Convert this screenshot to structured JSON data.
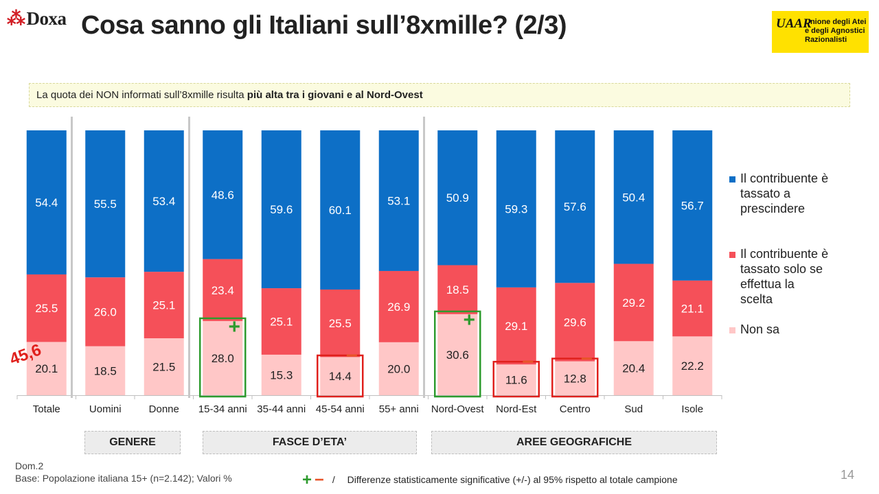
{
  "header": {
    "logo_text": "Doxa",
    "title": "Cosa sanno gli Italiani sull’8xmille? (2/3)",
    "uaar_monogram": "UAAR",
    "uaar_line1": "Unione degli Atei",
    "uaar_line2": "e degli Agnostici",
    "uaar_line3": "Razionalisti"
  },
  "subtitle": {
    "text": "La quota dei NON informati sull’8xmille risulta ",
    "bold": "più alta tra i giovani e al Nord-Ovest"
  },
  "chart_data": {
    "type": "bar",
    "stacked": true,
    "ylim": [
      0,
      100
    ],
    "categories": [
      "Totale",
      "Uomini",
      "Donne",
      "15-34 anni",
      "35-44 anni",
      "45-54 anni",
      "55+ anni",
      "Nord-Ovest",
      "Nord-Est",
      "Centro",
      "Sud",
      "Isole"
    ],
    "series": [
      {
        "name": "Non sa",
        "color": "#ffc7c7",
        "values": [
          20.1,
          18.5,
          21.5,
          28.0,
          15.3,
          14.4,
          20.0,
          30.6,
          11.6,
          12.8,
          20.4,
          22.2
        ]
      },
      {
        "name": "Il contribuente è tassato solo se effettua la scelta",
        "color": "#f55059",
        "values": [
          25.5,
          26.0,
          25.1,
          23.4,
          25.1,
          25.5,
          26.9,
          18.5,
          29.1,
          29.6,
          29.2,
          21.1
        ]
      },
      {
        "name": "Il contribuente è tassato a prescindere",
        "color": "#0d6fc6",
        "values": [
          54.4,
          55.5,
          53.4,
          48.6,
          59.6,
          60.1,
          53.1,
          50.9,
          59.3,
          57.6,
          50.4,
          56.7
        ]
      }
    ],
    "legend_position": "right",
    "legend_order": [
      "Il contribuente è tassato a prescindere",
      "Il contribuente è tassato solo se effettua la scelta",
      "Non sa"
    ],
    "groups": [
      {
        "label": "GENERE",
        "categories": [
          "Uomini",
          "Donne"
        ]
      },
      {
        "label": "FASCE D’ETA’",
        "categories": [
          "15-34 anni",
          "35-44 anni",
          "45-54 anni",
          "55+ anni"
        ]
      },
      {
        "label": "AREE GEOGRAFICHE",
        "categories": [
          "Nord-Ovest",
          "Nord-Est",
          "Centro",
          "Sud",
          "Isole"
        ]
      }
    ],
    "significance": [
      {
        "category": "15-34 anni",
        "sign": "+"
      },
      {
        "category": "45-54 anni",
        "sign": "−"
      },
      {
        "category": "Nord-Ovest",
        "sign": "+"
      },
      {
        "category": "Nord-Est",
        "sign": "−"
      },
      {
        "category": "Centro",
        "sign": "−"
      }
    ],
    "annotation": {
      "text": "45,6",
      "category": "Totale"
    },
    "colors": {
      "plus": "#2e9b2e",
      "minus": "#e8542a",
      "box_plus": "#2e9b2e",
      "box_minus": "#e0201c"
    }
  },
  "footer": {
    "dom": "Dom.2",
    "base": "Base: Popolazione italiana 15+ (n=2.142); Valori %",
    "sig_plus": "+",
    "sig_minus": "−",
    "sig_slash": "/",
    "sig_text": "Differenze statisticamente significative (+/-) al 95% rispetto al totale campione",
    "page_number": "14"
  }
}
